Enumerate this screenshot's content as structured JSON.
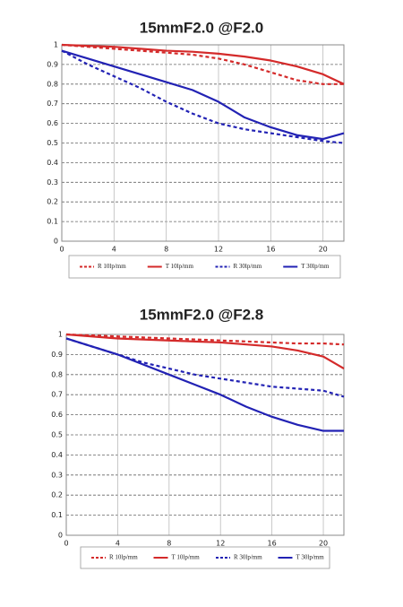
{
  "chart_data": [
    {
      "type": "line",
      "title": "15mmF2.0 @F2.0",
      "x": [
        0,
        2,
        4,
        6,
        8,
        10,
        12,
        14,
        16,
        18,
        20,
        21.6
      ],
      "xlim": [
        0,
        21.6
      ],
      "xticks": [
        0,
        4,
        8,
        12,
        16,
        20
      ],
      "ylim": [
        0,
        1
      ],
      "yticks": [
        0,
        0.1,
        0.2,
        0.3,
        0.4,
        0.5,
        0.6,
        0.7,
        0.8,
        0.9,
        1
      ],
      "grid": true,
      "legend": "bottom",
      "series": [
        {
          "name": "R 10lp/mm",
          "color": "#d42a2a",
          "dashed": true,
          "values": [
            1,
            0.99,
            0.98,
            0.97,
            0.96,
            0.95,
            0.93,
            0.9,
            0.86,
            0.82,
            0.8,
            0.8
          ]
        },
        {
          "name": "T 10lp/mm",
          "color": "#d42a2a",
          "dashed": false,
          "values": [
            1,
            0.995,
            0.99,
            0.98,
            0.97,
            0.965,
            0.955,
            0.94,
            0.92,
            0.89,
            0.85,
            0.8
          ]
        },
        {
          "name": "R 30lp/mm",
          "color": "#2222b4",
          "dashed": true,
          "values": [
            0.97,
            0.9,
            0.84,
            0.78,
            0.71,
            0.65,
            0.6,
            0.57,
            0.55,
            0.53,
            0.51,
            0.5
          ]
        },
        {
          "name": "T 30lp/mm",
          "color": "#2222b4",
          "dashed": false,
          "values": [
            0.97,
            0.93,
            0.89,
            0.85,
            0.81,
            0.77,
            0.71,
            0.63,
            0.58,
            0.54,
            0.52,
            0.55
          ]
        }
      ]
    },
    {
      "type": "line",
      "title": "15mmF2.0 @F2.8",
      "x": [
        0,
        2,
        4,
        6,
        8,
        10,
        12,
        14,
        16,
        18,
        20,
        21.6
      ],
      "xlim": [
        0,
        21.6
      ],
      "xticks": [
        0,
        4,
        8,
        12,
        16,
        20
      ],
      "ylim": [
        0,
        1
      ],
      "yticks": [
        0,
        0.1,
        0.2,
        0.3,
        0.4,
        0.5,
        0.6,
        0.7,
        0.8,
        0.9,
        1
      ],
      "grid": true,
      "legend": "bottom",
      "series": [
        {
          "name": "R 10lp/mm",
          "color": "#d42a2a",
          "dashed": true,
          "values": [
            1,
            0.995,
            0.99,
            0.985,
            0.98,
            0.975,
            0.97,
            0.965,
            0.96,
            0.955,
            0.955,
            0.95
          ]
        },
        {
          "name": "T 10lp/mm",
          "color": "#d42a2a",
          "dashed": false,
          "values": [
            1,
            0.99,
            0.98,
            0.975,
            0.97,
            0.965,
            0.96,
            0.95,
            0.94,
            0.92,
            0.89,
            0.83
          ]
        },
        {
          "name": "R 30lp/mm",
          "color": "#2222b4",
          "dashed": true,
          "values": [
            0.98,
            0.94,
            0.9,
            0.86,
            0.83,
            0.8,
            0.78,
            0.76,
            0.74,
            0.73,
            0.72,
            0.69
          ]
        },
        {
          "name": "T 30lp/mm",
          "color": "#2222b4",
          "dashed": false,
          "values": [
            0.98,
            0.94,
            0.9,
            0.85,
            0.8,
            0.75,
            0.7,
            0.64,
            0.59,
            0.55,
            0.52,
            0.52
          ]
        }
      ]
    }
  ]
}
